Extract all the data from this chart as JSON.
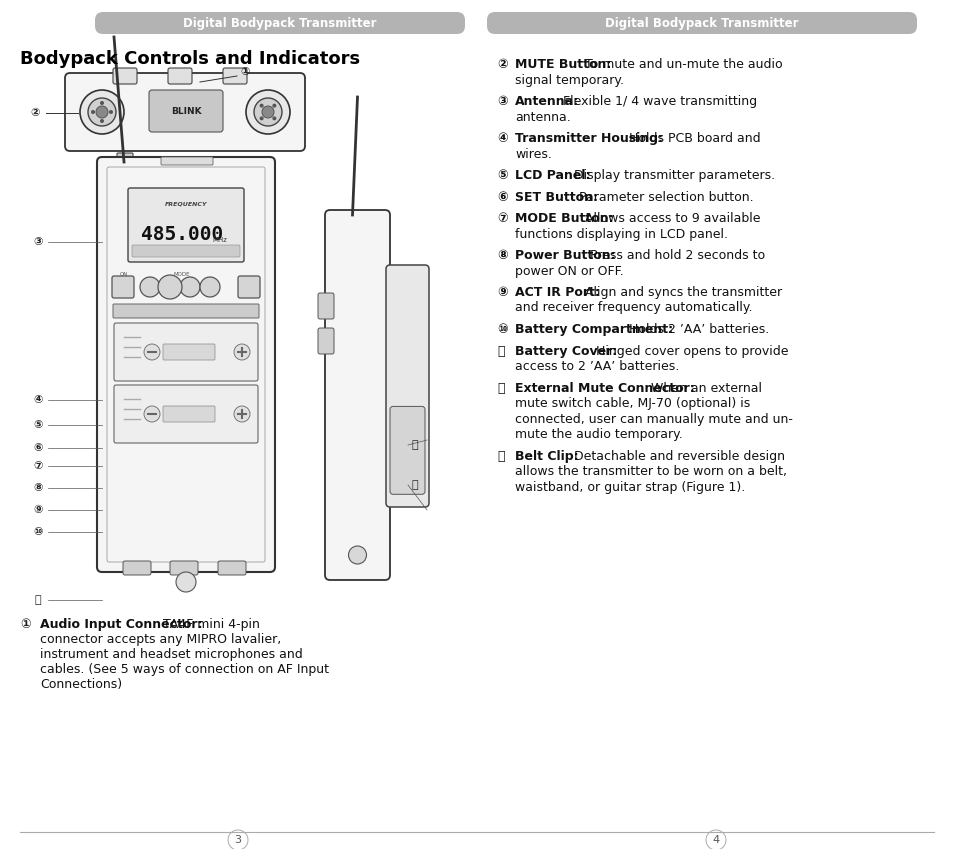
{
  "bg_color": "#ffffff",
  "header_color": "#b3b3b3",
  "header_text_color": "#ffffff",
  "header_text": "Digital Bodypack Transmitter",
  "title": "Bodypack Controls and Indicators",
  "page_numbers": [
    "3",
    "4"
  ],
  "divider_color": "#aaaaaa",
  "right_items": [
    {
      "num": "②",
      "bold": "MUTE Button:",
      "lines": [
        "To mute and un-mute the audio",
        "signal temporary."
      ]
    },
    {
      "num": "③",
      "bold": "Antenna:",
      "lines": [
        "Flexible 1/ 4 wave transmitting",
        "antenna."
      ]
    },
    {
      "num": "④",
      "bold": "Transmitter Housing:",
      "lines": [
        "Holds PCB board and",
        "wires."
      ]
    },
    {
      "num": "⑤",
      "bold": "LCD Panel:",
      "lines": [
        "Display transmitter parameters."
      ]
    },
    {
      "num": "⑥",
      "bold": "SET Button:",
      "lines": [
        "Parameter selection button."
      ]
    },
    {
      "num": "⑦",
      "bold": "MODE Button:",
      "lines": [
        "Allows access to 9 available",
        "functions displaying in LCD panel."
      ]
    },
    {
      "num": "⑧",
      "bold": "Power Button:",
      "lines": [
        "Press and hold 2 seconds to",
        "power ON or OFF."
      ]
    },
    {
      "num": "⑨",
      "bold": "ACT IR Port:",
      "lines": [
        "Align and syncs the transmitter",
        "and receiver frequency automatically."
      ]
    },
    {
      "num": "⑩",
      "bold": "Battery Compartment:",
      "lines": [
        "Holds 2 ’AA’ batteries."
      ]
    },
    {
      "num": "⑪",
      "bold": "Battery Cover:",
      "lines": [
        "Hinged cover opens to provide",
        "access to 2 ’AA’ batteries."
      ]
    },
    {
      "num": "⑫",
      "bold": "External Mute Connector:",
      "lines": [
        "When an external",
        "mute switch cable, MJ-70 (optional) is",
        "connected, user can manually mute and un-",
        "mute the audio temporary."
      ]
    },
    {
      "num": "⑬",
      "bold": "Belt Clip:",
      "lines": [
        "Detachable and reversible design",
        "allows the transmitter to be worn on a belt,",
        "waistband, or guitar strap (Figure 1)."
      ]
    }
  ]
}
